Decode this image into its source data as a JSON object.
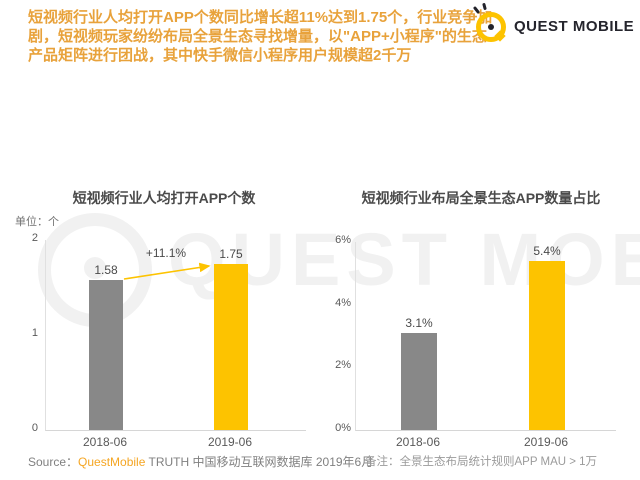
{
  "header": {
    "headline": "短视频行业人均打开APP个数同比增长超11%达到1.75个，行业竞争加剧，短视频玩家纷纷布局全景生态寻找增量，以\"APP+小程序\"的生态产品矩阵进行团战，其中快手微信小程序用户规模超2千万",
    "brand": "QUEST MOBILE"
  },
  "watermark_text": "QUEST MOBILE",
  "colors": {
    "accent_orange": "#E8A23B",
    "bar_gray": "#888888",
    "bar_yellow": "#FDC300",
    "source_brand_orange": "#F5A623"
  },
  "chart_data": [
    {
      "type": "bar",
      "title": "短视频行业人均打开APP个数",
      "unit_label": "单位：个",
      "categories": [
        "2018-06",
        "2019-06"
      ],
      "values": [
        1.58,
        1.75
      ],
      "value_labels": [
        "1.58",
        "1.75"
      ],
      "bar_colors": [
        "#888888",
        "#FDC300"
      ],
      "ylim": [
        0,
        2
      ],
      "yticks": [
        "2",
        "1",
        "0"
      ],
      "annotation": "+11.1%",
      "grid": false,
      "legend": "none"
    },
    {
      "type": "bar",
      "title": "短视频行业布局全景生态APP数量占比",
      "categories": [
        "2018-06",
        "2019-06"
      ],
      "values": [
        3.1,
        5.4
      ],
      "value_labels": [
        "3.1%",
        "5.4%"
      ],
      "bar_colors": [
        "#888888",
        "#FDC300"
      ],
      "ylim": [
        0,
        6
      ],
      "yticks": [
        "6%",
        "4%",
        "2%",
        "0%"
      ],
      "grid": false,
      "legend": "none"
    }
  ],
  "footer": {
    "source_prefix": "Source：",
    "source_brand": "QuestMobile",
    "source_rest": " TRUTH 中国移动互联网数据库 2019年6月",
    "note": "备注：全景生态布局统计规则APP MAU > 1万"
  }
}
